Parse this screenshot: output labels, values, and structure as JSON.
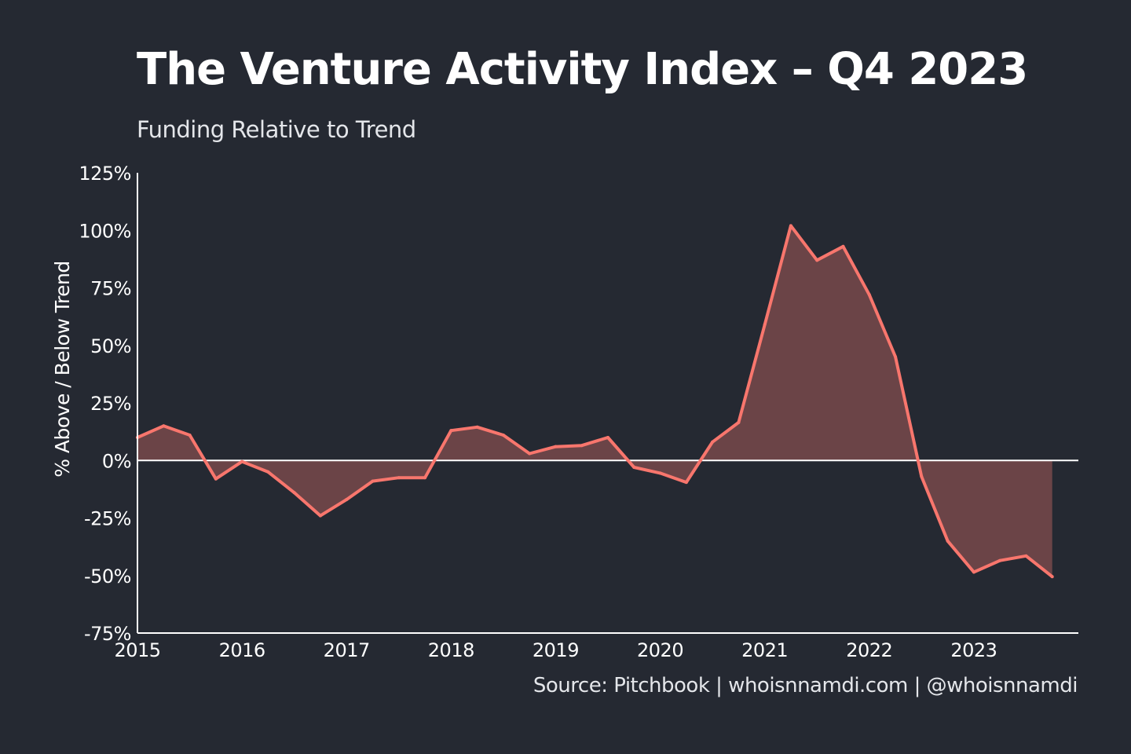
{
  "chart_data": {
    "type": "area",
    "title": "The Venture Activity Index – Q4 2023",
    "subtitle": "Funding Relative to Trend",
    "ylabel": "% Above / Below Trend",
    "xlabel": "",
    "source": "Source: Pitchbook | whoisnnamdi.com | @whoisnnamdi",
    "ylim": [
      -75,
      125
    ],
    "xlim": [
      2015,
      2024
    ],
    "y_ticks": [
      {
        "value": 125,
        "label": "125%"
      },
      {
        "value": 100,
        "label": "100%"
      },
      {
        "value": 75,
        "label": "75%"
      },
      {
        "value": 50,
        "label": "50%"
      },
      {
        "value": 25,
        "label": "25%"
      },
      {
        "value": 0,
        "label": "0%"
      },
      {
        "value": -25,
        "label": "-25%"
      },
      {
        "value": -50,
        "label": "-50%"
      },
      {
        "value": -75,
        "label": "-75%"
      }
    ],
    "x_ticks": [
      {
        "value": 2015,
        "label": "2015"
      },
      {
        "value": 2016,
        "label": "2016"
      },
      {
        "value": 2017,
        "label": "2017"
      },
      {
        "value": 2018,
        "label": "2018"
      },
      {
        "value": 2019,
        "label": "2019"
      },
      {
        "value": 2020,
        "label": "2020"
      },
      {
        "value": 2021,
        "label": "2021"
      },
      {
        "value": 2022,
        "label": "2022"
      },
      {
        "value": 2023,
        "label": "2023"
      }
    ],
    "grid": false,
    "series": [
      {
        "x": [
          2015.0,
          2015.25,
          2015.5,
          2015.75,
          2016.0,
          2016.25,
          2016.5,
          2016.75,
          2017.0,
          2017.25,
          2017.5,
          2017.75,
          2018.0,
          2018.25,
          2018.5,
          2018.75,
          2019.0,
          2019.25,
          2019.5,
          2019.75,
          2020.0,
          2020.25,
          2020.5,
          2020.75,
          2021.0,
          2021.25,
          2021.5,
          2021.75,
          2022.0,
          2022.25,
          2022.5,
          2022.75,
          2023.0,
          2023.25,
          2023.5,
          2023.75
        ],
        "values": [
          10,
          15,
          11,
          -8,
          -0.5,
          -5,
          -14,
          -24,
          -17,
          -9,
          -7.5,
          -7.5,
          13,
          14.5,
          11,
          3,
          6,
          6.5,
          10,
          -3,
          -5.5,
          -9.5,
          8,
          16.5,
          59,
          102,
          87,
          93,
          72,
          45,
          -7,
          -35,
          -48.5,
          -43.5,
          -41.5,
          -50.5
        ]
      }
    ],
    "colors": {
      "background": "#252932",
      "line": "#f8766d",
      "fill": "#6b4447",
      "axis": "#ffffff",
      "zero_line": "#ffffff"
    }
  }
}
